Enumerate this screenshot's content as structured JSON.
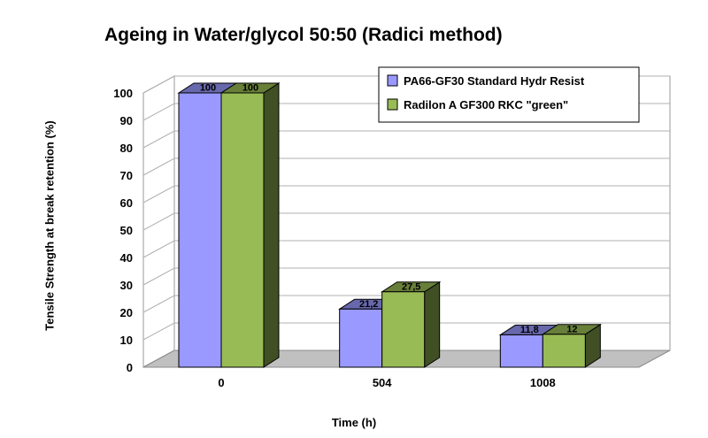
{
  "chart_data": {
    "type": "bar",
    "title": "Ageing in Water/glycol 50:50 (Radici method)",
    "xlabel": "Time (h)",
    "ylabel": "Tensile Strength at break retention (%)",
    "categories": [
      "0",
      "504",
      "1008"
    ],
    "ylim": [
      0,
      100
    ],
    "yticks": [
      0,
      10,
      20,
      30,
      40,
      50,
      60,
      70,
      80,
      90,
      100
    ],
    "grid": true,
    "legend_position": "top-right",
    "series": [
      {
        "name": "PA66-GF30 Standard Hydr Resist",
        "values": [
          100,
          21.2,
          11.8
        ],
        "labels": [
          "100",
          "21,2",
          "11,8"
        ],
        "color": "#9999ff"
      },
      {
        "name": "Radilon A GF300 RKC \"green\"",
        "values": [
          100,
          27.5,
          12
        ],
        "labels": [
          "100",
          "27,5",
          "12"
        ],
        "color": "#99bb55"
      }
    ]
  }
}
